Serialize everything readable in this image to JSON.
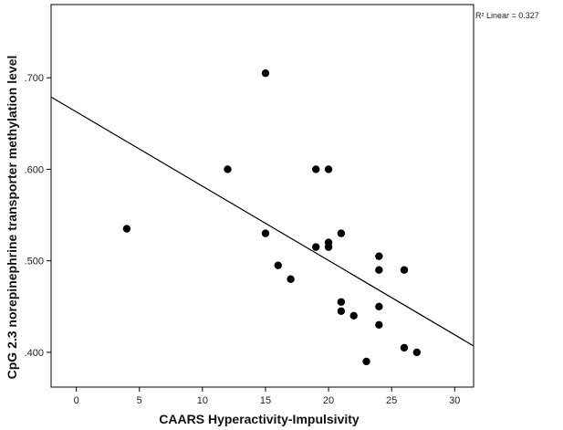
{
  "chart_data": {
    "type": "scatter",
    "xlabel": "CAARS Hyperactivity-Impulsivity",
    "ylabel": "CpG 2.3 norepinephrine transporter methylation level",
    "annotation": "R² Linear = 0.327",
    "xlim": [
      -2,
      31.5
    ],
    "ylim": [
      0.362,
      0.78
    ],
    "xticks": [
      {
        "value": 0,
        "label": "0"
      },
      {
        "value": 5,
        "label": "5"
      },
      {
        "value": 10,
        "label": "10"
      },
      {
        "value": 15,
        "label": "15"
      },
      {
        "value": 20,
        "label": "20"
      },
      {
        "value": 25,
        "label": "25"
      },
      {
        "value": 30,
        "label": "30"
      }
    ],
    "yticks": [
      {
        "value": 0.4,
        "label": ".400"
      },
      {
        "value": 0.5,
        "label": ".500"
      },
      {
        "value": 0.6,
        "label": ".600"
      },
      {
        "value": 0.7,
        "label": ".700"
      }
    ],
    "grid": false,
    "points": [
      {
        "x": 4,
        "y": 0.535
      },
      {
        "x": 12,
        "y": 0.6
      },
      {
        "x": 15,
        "y": 0.705
      },
      {
        "x": 15,
        "y": 0.53
      },
      {
        "x": 16,
        "y": 0.495
      },
      {
        "x": 17,
        "y": 0.48
      },
      {
        "x": 19,
        "y": 0.6
      },
      {
        "x": 19,
        "y": 0.515
      },
      {
        "x": 20,
        "y": 0.6
      },
      {
        "x": 20,
        "y": 0.52
      },
      {
        "x": 20,
        "y": 0.515
      },
      {
        "x": 21,
        "y": 0.53
      },
      {
        "x": 21,
        "y": 0.455
      },
      {
        "x": 21,
        "y": 0.445
      },
      {
        "x": 22,
        "y": 0.44
      },
      {
        "x": 23,
        "y": 0.39
      },
      {
        "x": 24,
        "y": 0.505
      },
      {
        "x": 24,
        "y": 0.49
      },
      {
        "x": 24,
        "y": 0.45
      },
      {
        "x": 24,
        "y": 0.43
      },
      {
        "x": 26,
        "y": 0.49
      },
      {
        "x": 26,
        "y": 0.405
      },
      {
        "x": 27,
        "y": 0.4
      }
    ],
    "fit_line": [
      {
        "x": -2,
        "y": 0.679
      },
      {
        "x": 31.5,
        "y": 0.407
      }
    ],
    "colors": {
      "points": "#000000",
      "line": "#000000",
      "frame": "#000000"
    }
  }
}
